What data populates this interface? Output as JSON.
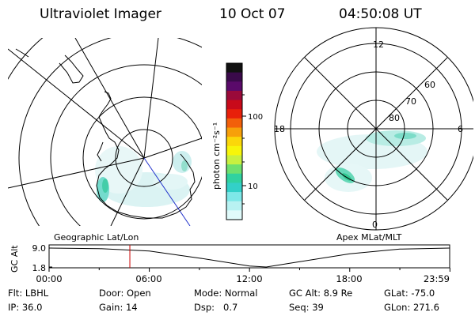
{
  "header": {
    "instrument": "Ultraviolet Imager",
    "date": "10 Oct 07",
    "time": "04:50:08 UT"
  },
  "geographic_panel": {
    "label": "Geographic Lat/Lon"
  },
  "colorbar": {
    "unit": "photon cm⁻²s⁻¹",
    "ticks": [
      "100",
      "10"
    ],
    "colors": [
      "#111111",
      "#3a0a4a",
      "#5a0a6a",
      "#9a0a3a",
      "#c80a1a",
      "#e8200a",
      "#f2600a",
      "#f7a00a",
      "#fbd70a",
      "#f7f50a",
      "#c8f040",
      "#6ee06e",
      "#30d2a0",
      "#33d0c8",
      "#7ee8e8",
      "#b8f2f2",
      "#e0fafa"
    ]
  },
  "apex_panel": {
    "label": "Apex MLat/MLT",
    "mlt_labels": [
      "12",
      "18",
      "6",
      "0"
    ],
    "mlat_labels": [
      "60",
      "70",
      "80"
    ]
  },
  "timeline": {
    "axis_label": "GC Alt",
    "y_ticks": [
      "9.0",
      "1.8"
    ],
    "x_ticks": [
      "00:00",
      "06:00",
      "12:00",
      "18:00",
      "23:59"
    ],
    "marker_color": "#cc0000"
  },
  "chart_data": {
    "type": "line",
    "title": "",
    "xlabel": "",
    "ylabel": "GC Alt",
    "x": [
      "00:00",
      "03:00",
      "06:00",
      "09:00",
      "12:00",
      "13:00",
      "15:00",
      "18:00",
      "21:00",
      "23:59"
    ],
    "series": [
      {
        "values": [
          9.0,
          8.8,
          7.9,
          5.2,
          2.2,
          1.8,
          3.8,
          6.8,
          8.6,
          9.0
        ]
      }
    ],
    "ylim": [
      1.8,
      9.0
    ],
    "marker_time": "04:50:08"
  },
  "status": {
    "row1": [
      {
        "label": "Flt:",
        "value": "LBHL"
      },
      {
        "label": "Door:",
        "value": "Open"
      },
      {
        "label": "Mode:",
        "value": "Normal"
      },
      {
        "label": "GC Alt:",
        "value": "8.9 Re"
      },
      {
        "label": "GLat:",
        "value": "-75.0"
      }
    ],
    "row2": [
      {
        "label": "IP:",
        "value": "36.0"
      },
      {
        "label": "Gain:",
        "value": "14"
      },
      {
        "label": "Dsp:",
        "value": "0.7"
      },
      {
        "label": "Seq:",
        "value": "39"
      },
      {
        "label": "GLon:",
        "value": "271.6"
      }
    ]
  }
}
